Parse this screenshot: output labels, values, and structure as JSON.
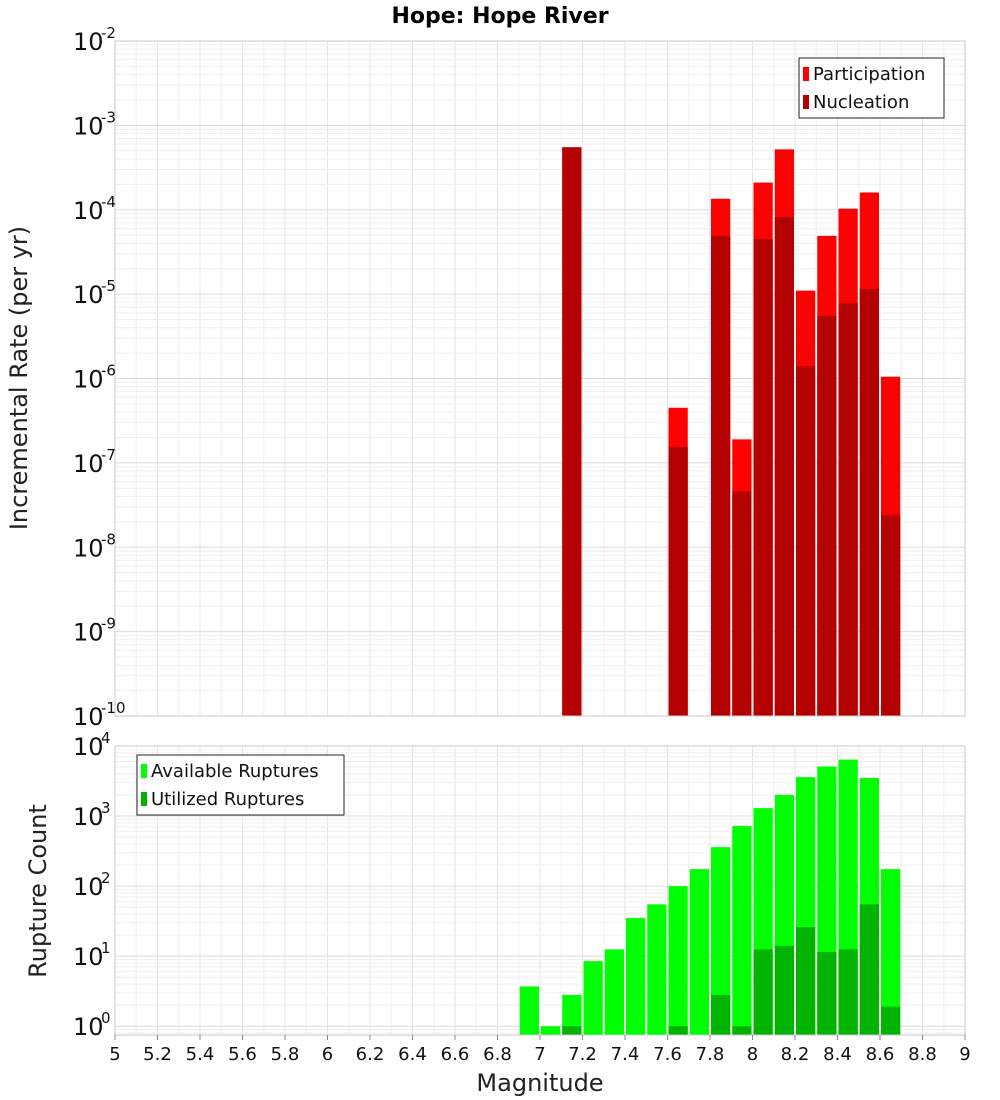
{
  "title": "Hope: Hope River",
  "chart_data": [
    {
      "type": "bar",
      "panel": "rates",
      "title": "Hope: Hope River",
      "xlabel": "Magnitude",
      "ylabel": "Incremental Rate (per yr)",
      "yscale": "log",
      "xlim": [
        5,
        9
      ],
      "ylim": [
        1e-10,
        0.01
      ],
      "y_tick_exponents": [
        -10,
        -9,
        -8,
        -7,
        -6,
        -5,
        -4,
        -3,
        -2
      ],
      "grid": true,
      "legend_position": "top-right",
      "bin_width": 0.1,
      "series": [
        {
          "name": "Participation",
          "color": "#ff0000",
          "x": [
            7.15,
            7.65,
            7.85,
            7.95,
            8.05,
            8.15,
            8.25,
            8.35,
            8.45,
            8.55,
            8.65
          ],
          "values": [
            0.00055,
            4.5e-07,
            0.000135,
            1.9e-07,
            0.00021,
            0.00052,
            1.1e-05,
            4.9e-05,
            0.000103,
            0.00016,
            1.05e-06
          ]
        },
        {
          "name": "Nucleation",
          "color": "#b30000",
          "x": [
            7.15,
            7.65,
            7.85,
            7.95,
            8.05,
            8.15,
            8.25,
            8.35,
            8.45,
            8.55,
            8.65
          ],
          "values": [
            0.00055,
            1.55e-07,
            4.9e-05,
            4.6e-08,
            4.5e-05,
            8.2e-05,
            1.4e-06,
            5.5e-06,
            7.8e-06,
            1.15e-05,
            2.4e-08
          ]
        }
      ]
    },
    {
      "type": "bar",
      "panel": "counts",
      "xlabel": "Magnitude",
      "ylabel": "Rupture Count",
      "yscale": "log",
      "xlim": [
        5,
        9
      ],
      "ylim": [
        0.75,
        10000
      ],
      "y_tick_exponents": [
        0,
        1,
        2,
        3,
        4
      ],
      "x_ticks": [
        "5",
        "5.2",
        "5.4",
        "5.6",
        "5.8",
        "6",
        "6.2",
        "6.4",
        "6.6",
        "6.8",
        "7",
        "7.2",
        "7.4",
        "7.6",
        "7.8",
        "8",
        "8.2",
        "8.4",
        "8.6",
        "8.8",
        "9"
      ],
      "grid": true,
      "legend_position": "top-left",
      "bin_width": 0.1,
      "series": [
        {
          "name": "Available Ruptures",
          "color": "#00ff00",
          "x": [
            6.95,
            7.05,
            7.15,
            7.25,
            7.35,
            7.45,
            7.55,
            7.65,
            7.75,
            7.85,
            7.95,
            8.05,
            8.15,
            8.25,
            8.35,
            8.45,
            8.55,
            8.65
          ],
          "values": [
            3.7,
            1,
            2.8,
            8.5,
            12.5,
            35,
            55,
            100,
            175,
            360,
            720,
            1300,
            2000,
            3600,
            5100,
            6400,
            3500,
            175
          ]
        },
        {
          "name": "Utilized Ruptures",
          "color": "#00b300",
          "x": [
            7.15,
            7.65,
            7.85,
            7.95,
            8.05,
            8.15,
            8.25,
            8.35,
            8.45,
            8.55,
            8.65
          ],
          "values": [
            1,
            1,
            2.8,
            1,
            12.5,
            14,
            26,
            11.5,
            12.5,
            55,
            1.9
          ]
        }
      ]
    }
  ]
}
